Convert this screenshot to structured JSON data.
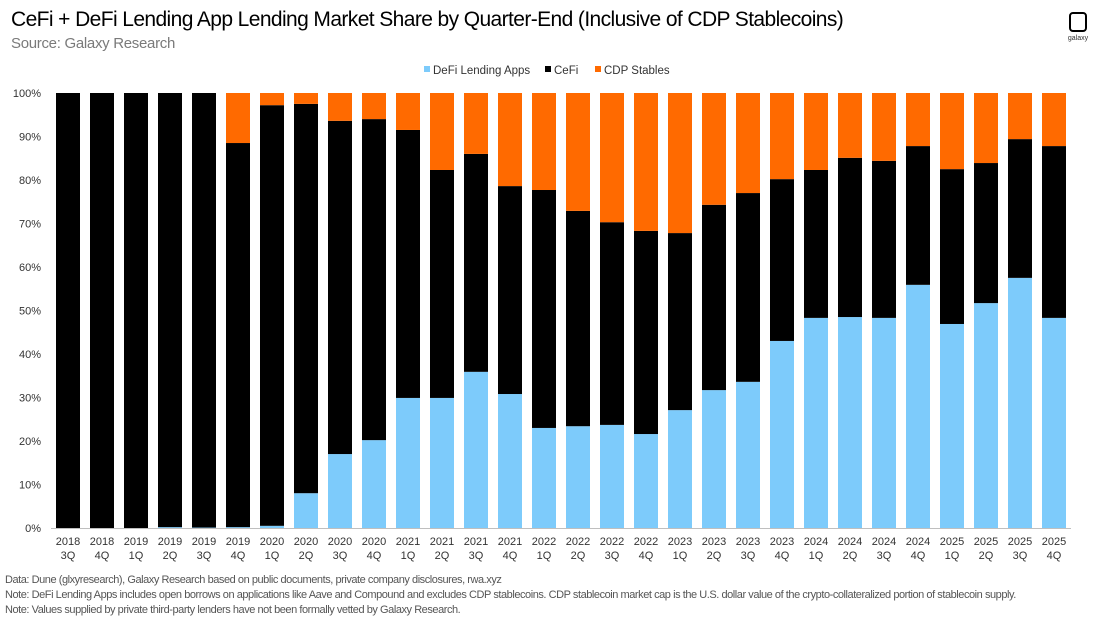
{
  "header": {
    "title": "CeFi + DeFi Lending App Lending Market Share by Quarter-End (Inclusive of CDP Stablecoins)",
    "subtitle": "Source: Galaxy Research",
    "logo_text": "galaxy"
  },
  "notes": [
    "Data: Dune (glxyresearch), Galaxy Research based on public documents, private company disclosures, rwa.xyz",
    "Note: DeFi Lending Apps includes open borrows on applications like Aave and Compound and excludes CDP stablecoins. CDP stablecoin market cap is the U.S. dollar value of the crypto-collateralized portion of stablecoin supply.",
    "Note: Values supplied by private third-party lenders have not been formally vetted  by Galaxy Research."
  ],
  "chart_data": {
    "type": "bar",
    "stacked": true,
    "normalized": true,
    "title": "CeFi + DeFi Lending App Lending Market Share by Quarter-End (Inclusive of CDP Stablecoins)",
    "legend_position": "top",
    "grid": false,
    "ylim": [
      0,
      100
    ],
    "yticks": [
      "0%",
      "10%",
      "20%",
      "30%",
      "40%",
      "50%",
      "60%",
      "70%",
      "80%",
      "90%",
      "100%"
    ],
    "categories": [
      [
        "2018",
        "3Q"
      ],
      [
        "2018",
        "4Q"
      ],
      [
        "2019",
        "1Q"
      ],
      [
        "2019",
        "2Q"
      ],
      [
        "2019",
        "3Q"
      ],
      [
        "2019",
        "4Q"
      ],
      [
        "2020",
        "1Q"
      ],
      [
        "2020",
        "2Q"
      ],
      [
        "2020",
        "3Q"
      ],
      [
        "2020",
        "4Q"
      ],
      [
        "2021",
        "1Q"
      ],
      [
        "2021",
        "2Q"
      ],
      [
        "2021",
        "3Q"
      ],
      [
        "2021",
        "4Q"
      ],
      [
        "2022",
        "1Q"
      ],
      [
        "2022",
        "2Q"
      ],
      [
        "2022",
        "3Q"
      ],
      [
        "2022",
        "4Q"
      ],
      [
        "2023",
        "1Q"
      ],
      [
        "2023",
        "2Q"
      ],
      [
        "2023",
        "3Q"
      ],
      [
        "2023",
        "4Q"
      ],
      [
        "2024",
        "1Q"
      ],
      [
        "2024",
        "2Q"
      ],
      [
        "2024",
        "3Q"
      ],
      [
        "2024",
        "4Q"
      ],
      [
        "2025",
        "1Q"
      ],
      [
        "2025",
        "2Q"
      ],
      [
        "2025",
        "3Q"
      ],
      [
        "2025",
        "4Q"
      ]
    ],
    "series": [
      {
        "name": "DeFi Lending Apps",
        "color": "#7dcbfb",
        "values": [
          0,
          0,
          0,
          0.2,
          0.1,
          0.2,
          0.5,
          8.0,
          17.0,
          20.2,
          29.9,
          29.9,
          35.9,
          30.8,
          23.0,
          23.4,
          23.7,
          21.6,
          27.1,
          31.7,
          33.6,
          43.0,
          48.3,
          48.5,
          48.3,
          55.9,
          46.9,
          51.7,
          57.5,
          48.3
        ]
      },
      {
        "name": "CeFi",
        "color": "#000000",
        "values": [
          100,
          100,
          100,
          99.8,
          99.9,
          88.3,
          96.7,
          89.5,
          76.6,
          73.8,
          61.6,
          52.4,
          50.1,
          47.8,
          54.7,
          49.5,
          46.6,
          46.7,
          40.7,
          42.6,
          43.4,
          37.2,
          34.0,
          36.6,
          36.1,
          31.9,
          35.6,
          32.2,
          31.9,
          39.5
        ]
      },
      {
        "name": "CDP Stables",
        "color": "#ff6a00",
        "values": [
          0,
          0,
          0,
          0,
          0,
          11.5,
          2.8,
          2.5,
          6.4,
          6.0,
          8.5,
          17.7,
          14.0,
          21.4,
          22.3,
          27.1,
          29.7,
          31.7,
          32.2,
          25.7,
          23.0,
          19.8,
          17.7,
          14.9,
          15.6,
          12.2,
          17.5,
          16.1,
          10.6,
          12.2
        ]
      }
    ]
  }
}
